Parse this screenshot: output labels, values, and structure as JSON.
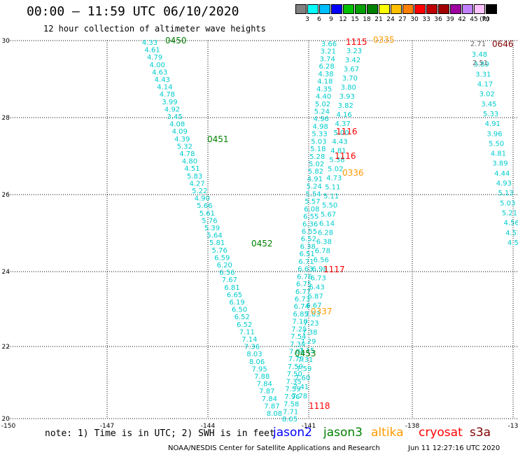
{
  "header": {
    "title": "00:00 – 11:59 UTC 06/10/2020",
    "subtitle": "12 hour collection of altimeter wave heights"
  },
  "legend": {
    "colors": [
      "#808080",
      "#00ffff",
      "#00bfff",
      "#0000ff",
      "#00c000",
      "#00a000",
      "#008000",
      "#ffff00",
      "#ffc000",
      "#ff8000",
      "#ff0000",
      "#c00000",
      "#a00000",
      "#a000a0",
      "#c080ff",
      "#ffc0ff",
      "#000000"
    ],
    "ticks": [
      "3",
      "6",
      "9",
      "12",
      "15",
      "18",
      "21",
      "24",
      "27",
      "30",
      "33",
      "36",
      "39",
      "42",
      "45",
      "70",
      "(ft)"
    ]
  },
  "axes": {
    "y_ticks": [
      "30",
      "28",
      "26",
      "24",
      "22",
      "20"
    ],
    "x_ticks": [
      "-150",
      "-147",
      "-144",
      "-141",
      "-138",
      "-13"
    ]
  },
  "tracks": [
    {
      "name": "jason3-0450-0453",
      "color": "#00cccc",
      "values": [
        "4.33",
        "4.61",
        "4.79",
        "4.00",
        "4.63",
        "4.43",
        "4.14",
        "4.78",
        "3.99",
        "4.92",
        "3.45",
        "4.08",
        "4.09",
        "4.39",
        "5.32",
        "4.78",
        "4.80",
        "4.51",
        "5.83",
        "4.27",
        "5.22",
        "4.90",
        "5.66",
        "5.61",
        "5.76",
        "5.39",
        "5.64",
        "5.81",
        "5.76",
        "6.59",
        "6.20",
        "6.56",
        "7.67",
        "6.81",
        "6.65",
        "6.19",
        "6.50",
        "6.52",
        "6.52",
        "7.11",
        "7.14",
        "7.36",
        "8.03",
        "8.06",
        "7.95",
        "7.88",
        "7.84",
        "7.87",
        "7.84",
        "7.87",
        "8.08"
      ]
    },
    {
      "name": "jason2-1115-1118",
      "color": "#00cccc",
      "values": [
        "3.66",
        "3.21",
        "3.74",
        "6.28",
        "4.38",
        "4.18",
        "4.35",
        "4.40",
        "5.02",
        "5.24",
        "4.96",
        "4.98",
        "5.33",
        "5.03",
        "5.18",
        "5.28",
        "5.02",
        "5.82",
        "4.91",
        "5.24",
        "5.54",
        "5.57",
        "6.08",
        "6.55",
        "6.36",
        "6.55",
        "6.52",
        "6.38",
        "6.51",
        "6.71",
        "6.63",
        "6.76",
        "6.75",
        "6.77",
        "6.73",
        "6.74",
        "6.85",
        "7.10",
        "7.25",
        "7.54",
        "7.34",
        "7.01",
        "7.79",
        "7.59",
        "7.50",
        "7.35",
        "7.59",
        "7.96",
        "7.58",
        "7.71",
        "8.05"
      ]
    },
    {
      "name": "jason2-inner",
      "color": "#00cccc",
      "values": [
        "3.23",
        "3.42",
        "3.67",
        "3.70",
        "3.80",
        "3.93",
        "3.82",
        "4.16",
        "4.37",
        "5.00",
        "4.43",
        "4.81",
        "5.38",
        "5.02",
        "4.73",
        "5.11",
        "5.11",
        "5.50",
        "5.67",
        "6.14",
        "6.28",
        "6.38",
        "6.78",
        "6.56",
        "6.98",
        "6.73",
        "6.43",
        "6.87",
        "6.67",
        "7.03",
        "7.23",
        "7.38",
        "7.29",
        "7.15",
        "7.31",
        "7.59",
        "7.60",
        "7.41",
        "7.78"
      ]
    },
    {
      "name": "s3a-0646",
      "color": "#00cccc",
      "values": [
        "3.48",
        "3.89",
        "3.31",
        "4.17",
        "3.02",
        "3.45",
        "5.33",
        "4.91",
        "3.96",
        "5.50",
        "4.81",
        "3.89",
        "4.44",
        "4.93",
        "5.13",
        "5.03",
        "5.21",
        "4.56",
        "4.51",
        "4.54"
      ]
    }
  ],
  "gray_values": [
    "2.71",
    "2.51"
  ],
  "pass_labels": [
    {
      "text": "0450",
      "color": "#008000"
    },
    {
      "text": "0451",
      "color": "#008000"
    },
    {
      "text": "0452",
      "color": "#008000"
    },
    {
      "text": "0453",
      "color": "#008000"
    },
    {
      "text": "1115",
      "color": "#ff0000"
    },
    {
      "text": "1116",
      "color": "#ff0000"
    },
    {
      "text": "1116",
      "color": "#ff0000"
    },
    {
      "text": "1117",
      "color": "#ff0000"
    },
    {
      "text": "1118",
      "color": "#ff0000"
    },
    {
      "text": "0335",
      "color": "#ff9900"
    },
    {
      "text": "0336",
      "color": "#ff9900"
    },
    {
      "text": "0337",
      "color": "#ff9900"
    },
    {
      "text": "0646",
      "color": "#800000"
    }
  ],
  "footer": {
    "note": "note: 1) Time is in UTC; 2) SWH is in feet",
    "satellites": [
      {
        "label": "jason2",
        "color": "#0000ff"
      },
      {
        "label": "jason3",
        "color": "#008000"
      },
      {
        "label": "altika",
        "color": "#ff9900"
      },
      {
        "label": "cryosat",
        "color": "#ff0000"
      },
      {
        "label": "s3a",
        "color": "#800000"
      }
    ],
    "credit": "NOAA/NESDIS Center for Satellite Applications and Research",
    "timestamp": "Jun 11 12:27:16 UTC 2020"
  }
}
